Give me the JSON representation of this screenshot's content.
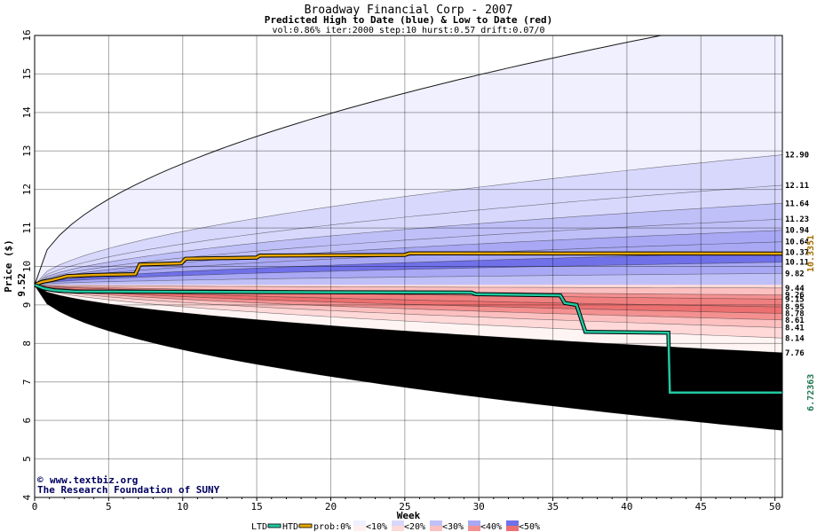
{
  "chart_data": {
    "type": "area",
    "title": "Broadway Financial Corp - 2007",
    "subtitle": "Predicted High to Date (blue) &  Low to Date (red)",
    "params": "vol:0.86% iter:2000 step:10 hurst:0.57 drift:0.07/0",
    "xlabel": "Week",
    "ylabel": "Price ($)",
    "xlim": [
      0,
      50.5
    ],
    "ylim": [
      4,
      16
    ],
    "x_ticks": [
      "0",
      "5",
      "10",
      "15",
      "20",
      "25",
      "30",
      "35",
      "40",
      "45",
      "50"
    ],
    "y_ticks": [
      "4",
      "5",
      "6",
      "7",
      "8",
      "9",
      "10",
      "11",
      "12",
      "13",
      "14",
      "15",
      "16"
    ],
    "start_price": 9.52,
    "start_label": "9.52",
    "high_band_levels": [
      12.9,
      12.11,
      11.64,
      11.23,
      10.94,
      10.64,
      10.37,
      10.11,
      9.82
    ],
    "low_band_levels": [
      9.44,
      9.26,
      9.15,
      8.95,
      8.78,
      8.61,
      8.41,
      8.14,
      7.76
    ],
    "band_labels": [
      "12.90",
      "12.11",
      "11.64",
      "11.23",
      "10.94",
      "10.64",
      "10.37",
      "10.11",
      "9.82",
      "9.44",
      "9.26",
      "9.15",
      "8.95",
      "8.78",
      "8.61",
      "8.41",
      "8.14",
      "7.76"
    ],
    "outer_high_end": 16.6,
    "outer_low_end": 5.75,
    "htd_series": {
      "name": "HTD",
      "color": "#e8a800",
      "end_label": "10.3351",
      "points": [
        [
          0,
          9.52
        ],
        [
          0.5,
          9.6
        ],
        [
          1.2,
          9.65
        ],
        [
          2.2,
          9.75
        ],
        [
          4,
          9.78
        ],
        [
          6.8,
          9.8
        ],
        [
          7.1,
          10.05
        ],
        [
          9.9,
          10.08
        ],
        [
          10.2,
          10.2
        ],
        [
          15,
          10.23
        ],
        [
          15.2,
          10.28
        ],
        [
          25,
          10.3
        ],
        [
          25.3,
          10.34
        ],
        [
          50.5,
          10.3351
        ]
      ]
    },
    "ltd_series": {
      "name": "LTD",
      "color": "#20c8a0",
      "end_label": "6.72363",
      "points": [
        [
          0,
          9.52
        ],
        [
          0.6,
          9.43
        ],
        [
          1.3,
          9.38
        ],
        [
          2.6,
          9.35
        ],
        [
          29.5,
          9.32
        ],
        [
          29.8,
          9.28
        ],
        [
          35.5,
          9.25
        ],
        [
          35.8,
          9.05
        ],
        [
          36.6,
          9.0
        ],
        [
          37.2,
          8.3
        ],
        [
          42.8,
          8.28
        ],
        [
          42.9,
          6.72363
        ],
        [
          50.5,
          6.72363
        ]
      ]
    },
    "probability_colors": {
      "0": "#fff4f4",
      "10": "#f0f0ff",
      "20": "#d8d8fc",
      "30": "#c0c0f8",
      "40": "#a8a8f4",
      "50": "#7070e8"
    },
    "low_colors": [
      "#ffd8d8",
      "#fcc0c0",
      "#f8a8a8",
      "#f49090",
      "#f08080",
      "#ec7070"
    ],
    "legend": {
      "ltd": "LTD",
      "htd": "HTD",
      "prob": "prob:0%",
      "items": [
        "<10%",
        "<20%",
        "<30%",
        "<40%",
        "<50%"
      ]
    }
  },
  "credits": {
    "site": "www.textbiz.org",
    "org": "The Research Foundation of SUNY",
    "symbol": "©"
  }
}
